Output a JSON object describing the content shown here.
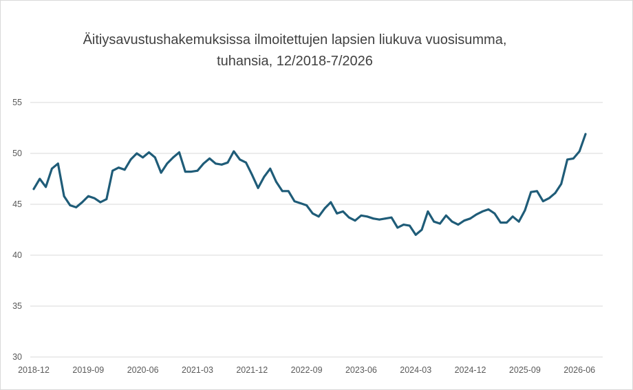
{
  "chart_data": {
    "type": "line",
    "title_line1": "Äitiysavustushakemuksissa ilmoitettujen lapsien liukuva vuosisumma,",
    "title_line2": "tuhansia, 12/2018-7/2026",
    "xlabel": "",
    "ylabel": "",
    "ylim": [
      30,
      55
    ],
    "y_ticks": [
      "30",
      "35",
      "40",
      "45",
      "50",
      "55"
    ],
    "x_ticks": [
      "2018-12",
      "2019-09",
      "2020-06",
      "2021-03",
      "2021-12",
      "2022-09",
      "2023-06",
      "2024-03",
      "2024-12",
      "2025-09",
      "2026-06"
    ],
    "grid": "horizontal",
    "legend": "none",
    "series": [
      {
        "color": "#1f5c78",
        "x_start": "2018-12",
        "frequency": "monthly",
        "values": [
          46.5,
          47.5,
          46.7,
          48.5,
          49.0,
          45.8,
          44.9,
          44.7,
          45.2,
          45.8,
          45.6,
          45.2,
          45.5,
          48.3,
          48.6,
          48.4,
          49.4,
          50.0,
          49.6,
          50.1,
          49.6,
          48.1,
          49.0,
          49.6,
          50.1,
          48.2,
          48.2,
          48.3,
          49.0,
          49.5,
          49.0,
          48.9,
          49.1,
          50.2,
          49.4,
          49.1,
          47.9,
          46.6,
          47.7,
          48.5,
          47.2,
          46.3,
          46.3,
          45.3,
          45.1,
          44.9,
          44.1,
          43.8,
          44.6,
          45.2,
          44.1,
          44.3,
          43.7,
          43.4,
          43.9,
          43.8,
          43.6,
          43.5,
          43.6,
          43.7,
          42.7,
          43.0,
          42.9,
          42.0,
          42.5,
          44.3,
          43.3,
          43.1,
          43.9,
          43.3,
          43.0,
          43.4,
          43.6,
          44.0,
          44.3,
          44.5,
          44.1,
          43.2,
          43.2,
          43.8,
          43.3,
          44.4,
          46.2,
          46.3,
          45.3,
          45.6,
          46.1,
          47.0,
          49.4,
          49.5,
          50.2,
          51.9
        ]
      }
    ]
  }
}
